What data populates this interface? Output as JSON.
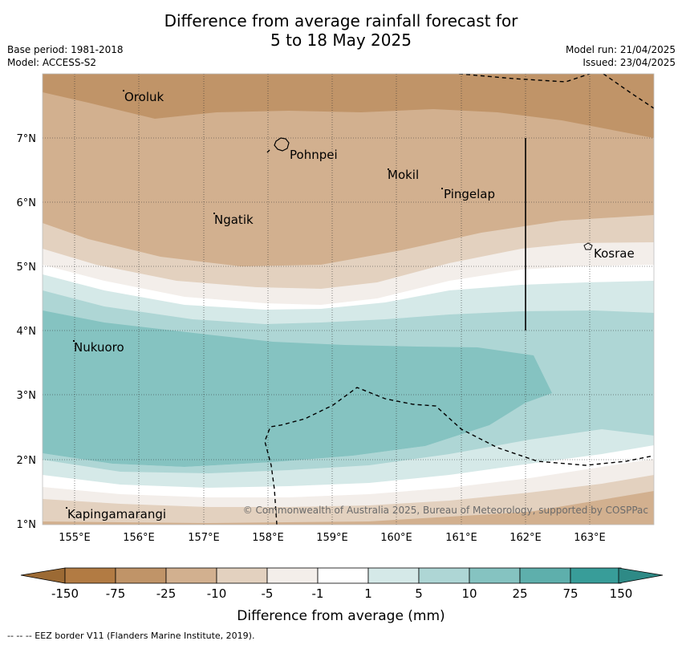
{
  "title_line1": "Difference from average rainfall forecast for",
  "title_line2": "5 to 18 May 2025",
  "base_period": "Base period: 1981-2018",
  "model": "Model: ACCESS-S2",
  "model_run": "Model run: 21/04/2025",
  "issued": "Issued: 23/04/2025",
  "copyright": "© Commonwealth of Australia 2025, Bureau of Meteorology, supported by COSPPac",
  "footer_note": "--  --  -- EEZ border V11 (Flanders Marine Institute, 2019).",
  "colorbar_label": "Difference from average (mm)",
  "map": {
    "lon_ticks": [
      "155°E",
      "156°E",
      "157°E",
      "158°E",
      "159°E",
      "160°E",
      "161°E",
      "162°E",
      "163°E"
    ],
    "lat_ticks": [
      "7°N",
      "6°N",
      "5°N",
      "4°N",
      "3°N",
      "2°N",
      "1°N"
    ],
    "places": [
      "Oroluk",
      "Pohnpei",
      "Mokil",
      "Pingelap",
      "Ngatik",
      "Kosrae",
      "Nukuoro",
      "Kapingamarangi"
    ]
  },
  "legend": {
    "ticks": [
      "-150",
      "-75",
      "-25",
      "-10",
      "-5",
      "-1",
      "1",
      "5",
      "10",
      "25",
      "75",
      "150"
    ],
    "colors": [
      "#b27b43",
      "#c09468",
      "#d2b08f",
      "#e3d1bf",
      "#f3eeea",
      "#ffffff",
      "#d5e9e8",
      "#aed6d5",
      "#85c3c1",
      "#5eafac",
      "#389d99"
    ],
    "extend_low_color": "#9c6a34",
    "extend_high_color": "#2e8a86"
  }
}
